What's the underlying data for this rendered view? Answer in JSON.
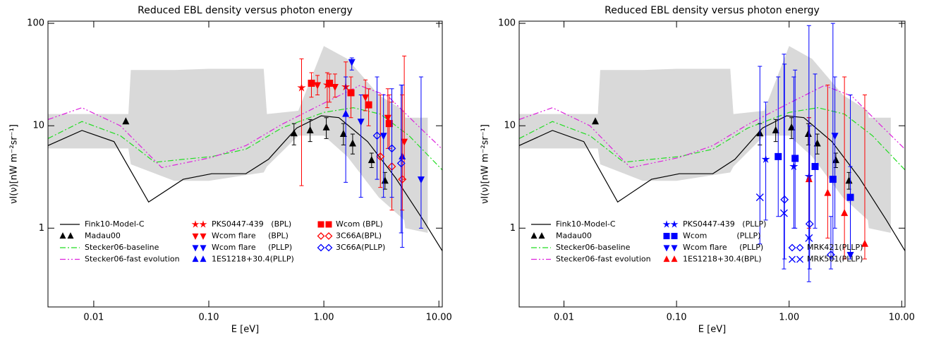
{
  "chart_data": [
    {
      "type": "line",
      "title": "Reduced EBL density versus photon energy",
      "x_label": "E [eV]",
      "y_label": "νI(ν)[nW m⁻²sr⁻¹]",
      "xscale": "log",
      "yscale": "log",
      "xlim": [
        0.004,
        10.7
      ],
      "ylim": [
        0.17,
        105
      ],
      "xticks": [
        0.01,
        {
          "value": 0.1,
          "label": "0.10"
        },
        {
          "value": 1,
          "label": "1.00"
        },
        {
          "value": 10,
          "label": "10.00"
        }
      ],
      "yticks": [
        1,
        10,
        100
      ],
      "band": {
        "color": "#d9d9d9",
        "x": [
          0.004,
          0.009,
          0.02,
          0.021,
          0.05,
          0.1,
          0.3,
          0.32,
          0.6,
          1.0,
          1.6,
          3,
          5,
          5.1,
          8
        ],
        "high": [
          13,
          13,
          13,
          35,
          35,
          36,
          36,
          13,
          14,
          60,
          45,
          20,
          14,
          12,
          12
        ],
        "low": [
          6,
          6,
          6,
          4.2,
          2.9,
          2.9,
          3.5,
          4,
          8,
          8,
          5,
          2,
          1.2,
          1,
          0.9
        ]
      },
      "series": [
        {
          "name": "Fink10-Model-C",
          "color": "#000000",
          "dash": "solid",
          "x": [
            0.004,
            0.0079,
            0.015,
            0.03,
            0.06,
            0.106,
            0.21,
            0.33,
            0.58,
            0.95,
            1.35,
            2.4,
            4.2,
            7.3,
            10.7
          ],
          "values": [
            6.4,
            9,
            7,
            1.8,
            3,
            3.4,
            3.4,
            4.7,
            9.5,
            12.5,
            12,
            7,
            3.1,
            1.2,
            0.6
          ]
        },
        {
          "name": "Madau00",
          "color": "#000000",
          "marker": "triangle-up",
          "x": [
            0.019,
            0.55,
            0.76,
            1.05,
            1.48,
            1.78,
            2.6,
            3.4
          ],
          "values": [
            11,
            8.4,
            9,
            9.6,
            8.3,
            6.7,
            4.6,
            2.9
          ],
          "low": [
            null,
            6.5,
            7,
            7.5,
            6.5,
            5.3,
            3.9,
            2.4
          ],
          "high": [
            null,
            10.5,
            11.5,
            12,
            10.5,
            8.3,
            5.4,
            3.5
          ]
        },
        {
          "name": "Stecker06-baseline",
          "color": "#22dd22",
          "dash": "dashdot",
          "x": [
            0.004,
            0.0079,
            0.017,
            0.034,
            0.06,
            0.106,
            0.21,
            0.43,
            1.0,
            1.8,
            3.1,
            5.5,
            10.7
          ],
          "values": [
            7.5,
            11,
            8,
            4.4,
            4.7,
            5,
            5.9,
            9.5,
            13.5,
            15,
            13,
            8,
            3.7
          ]
        },
        {
          "name": "Stecker06-fast evolution",
          "color": "#dd22dd",
          "dash": "dashdotdot",
          "x": [
            0.004,
            0.0079,
            0.017,
            0.039,
            0.106,
            0.21,
            0.43,
            1.0,
            2.05,
            3.6,
            6.4,
            10.7
          ],
          "values": [
            11.5,
            15,
            10,
            3.9,
            4.9,
            6.4,
            10.3,
            16.6,
            24.7,
            19.5,
            10.3,
            5.9
          ]
        },
        {
          "name": "PKS0447-439   (BPL)",
          "color": "#ff0000",
          "marker": "star",
          "x": [
            0.64,
            1.07,
            1.55
          ],
          "values": [
            23.5,
            25,
            24
          ],
          "low": [
            2.6,
            15,
            13
          ],
          "high": [
            45,
            33,
            42
          ]
        },
        {
          "name": "Wcom flare     (BPL)",
          "color": "#ff0000",
          "marker": "triangle-down",
          "x": [
            0.88,
            1.25,
            2.3,
            3.6,
            5
          ],
          "values": [
            25,
            24,
            19,
            12,
            7
          ],
          "low": [
            20,
            19,
            14,
            6,
            3
          ],
          "high": [
            31,
            32,
            28,
            23,
            48
          ]
        },
        {
          "name": "Wcom flare     (PLLP)",
          "color": "#0000ff",
          "marker": "triangle-down",
          "x": [
            1.75,
            2.1,
            3.3,
            7
          ],
          "values": [
            42,
            11,
            8,
            3
          ],
          "low": [
            35,
            2,
            2,
            1
          ],
          "high": [
            46,
            20,
            20,
            30
          ]
        },
        {
          "name": "1ES1218+30.4(PLLP)",
          "color": "#0000ff",
          "marker": "triangle-up",
          "x": [
            1.55,
            4.8
          ],
          "values": [
            13,
            5
          ],
          "low": [
            2.8,
            0.65
          ],
          "high": [
            30,
            25
          ]
        },
        {
          "name": "Wcom (BPL)",
          "color": "#ff0000",
          "marker": "square",
          "x": [
            0.78,
            1.12,
            1.72,
            2.45,
            3.7
          ],
          "values": [
            26,
            26,
            21,
            16,
            10.5
          ],
          "low": [
            19,
            17,
            12,
            10,
            6
          ],
          "high": [
            33,
            32,
            30,
            23,
            20
          ]
        },
        {
          "name": "3C66A(BPL)",
          "color": "#ff0000",
          "marker": "diamond-open",
          "x": [
            3.1,
            3.9,
            4.8
          ],
          "values": [
            5,
            4,
            3
          ],
          "low": [
            2.5,
            1.5,
            1.5
          ],
          "high": [
            20,
            17,
            20
          ]
        },
        {
          "name": "3C66A(PLLP)",
          "color": "#0000ff",
          "marker": "diamond-open",
          "x": [
            2.9,
            3.9,
            4.7
          ],
          "values": [
            8,
            6,
            4.3
          ],
          "low": [
            3,
            2,
            0.9
          ],
          "high": [
            30,
            23,
            25
          ]
        }
      ]
    },
    {
      "type": "line",
      "title": "Reduced EBL density versus photon energy",
      "x_label": "E [eV]",
      "y_label": "νI(ν)[nW m⁻²sr⁻¹]",
      "xscale": "log",
      "yscale": "log",
      "xlim": [
        0.004,
        10.7
      ],
      "ylim": [
        0.17,
        105
      ],
      "xticks": [
        0.01,
        {
          "value": 0.1,
          "label": "0.10"
        },
        {
          "value": 1,
          "label": "1.00"
        },
        {
          "value": 10,
          "label": "10.00"
        }
      ],
      "yticks": [
        1,
        10,
        100
      ],
      "band": {
        "color": "#d9d9d9",
        "x": [
          0.004,
          0.009,
          0.02,
          0.021,
          0.05,
          0.1,
          0.3,
          0.32,
          0.6,
          1.0,
          1.6,
          3,
          5,
          5.1,
          8
        ],
        "high": [
          13,
          13,
          13,
          35,
          35,
          36,
          36,
          13,
          14,
          60,
          45,
          20,
          14,
          12,
          12
        ],
        "low": [
          6,
          6,
          6,
          4.2,
          2.9,
          2.9,
          3.5,
          4,
          8,
          8,
          5,
          2,
          1.2,
          1,
          0.9
        ]
      },
      "series": [
        {
          "name": "Fink10-Model-C",
          "color": "#000000",
          "dash": "solid",
          "x": [
            0.004,
            0.0079,
            0.015,
            0.03,
            0.06,
            0.106,
            0.21,
            0.33,
            0.58,
            0.95,
            1.35,
            2.4,
            4.2,
            7.3,
            10.7
          ],
          "values": [
            6.4,
            9,
            7,
            1.8,
            3,
            3.4,
            3.4,
            4.7,
            9.5,
            12.5,
            12,
            7,
            3.1,
            1.2,
            0.6
          ]
        },
        {
          "name": "Madau00",
          "color": "#000000",
          "marker": "triangle-up",
          "x": [
            0.019,
            0.55,
            0.76,
            1.05,
            1.48,
            1.78,
            2.6,
            3.4
          ],
          "values": [
            11,
            8.4,
            9,
            9.6,
            8.3,
            6.7,
            4.6,
            2.9
          ],
          "low": [
            null,
            6.5,
            7,
            7.5,
            6.5,
            5.3,
            3.9,
            2.4
          ],
          "high": [
            null,
            10.5,
            11.5,
            12,
            10.5,
            8.3,
            5.4,
            3.5
          ]
        },
        {
          "name": "Stecker06-baseline",
          "color": "#22dd22",
          "dash": "dashdot",
          "x": [
            0.004,
            0.0079,
            0.017,
            0.034,
            0.06,
            0.106,
            0.21,
            0.43,
            1.0,
            1.8,
            3.1,
            5.5,
            10.7
          ],
          "values": [
            7.5,
            11,
            8,
            4.4,
            4.7,
            5,
            5.9,
            9.5,
            13.5,
            15,
            13,
            8,
            3.7
          ]
        },
        {
          "name": "Stecker06-fast evolution",
          "color": "#dd22dd",
          "dash": "dashdotdot",
          "x": [
            0.004,
            0.0079,
            0.017,
            0.039,
            0.106,
            0.21,
            0.43,
            1.0,
            2.05,
            3.6,
            6.4,
            10.7
          ],
          "values": [
            11.5,
            15,
            10,
            3.9,
            4.9,
            6.4,
            10.3,
            16.6,
            24.7,
            19.5,
            10.3,
            5.9
          ]
        },
        {
          "name": "PKS0447-439   (PLLP)",
          "color": "#0000ff",
          "marker": "star",
          "x": [
            0.62,
            1.1,
            1.5
          ],
          "values": [
            4.7,
            4,
            3.2
          ],
          "low": [
            1.2,
            1,
            0.8
          ],
          "high": [
            17,
            30,
            12
          ]
        },
        {
          "name": "Wcom            (PLLP)",
          "color": "#0000ff",
          "marker": "square",
          "x": [
            0.8,
            1.13,
            1.7,
            2.45,
            3.5
          ],
          "values": [
            5,
            4.8,
            4,
            3,
            2
          ],
          "low": [
            1.3,
            1,
            1,
            0.5,
            0.5
          ],
          "high": [
            30,
            35,
            32,
            100,
            20
          ]
        },
        {
          "name": "Wcom flare     (PLLP)",
          "color": "#0000ff",
          "marker": "triangle-down",
          "x": [
            2.55,
            3.5
          ],
          "values": [
            8,
            0.55
          ],
          "low": [
            1,
            0.55
          ],
          "high": [
            30,
            4
          ]
        },
        {
          "name": "1ES1218+30.4(BPL)",
          "color": "#ff0000",
          "marker": "triangle-up",
          "x": [
            1.5,
            2.2,
            3.1,
            4.7
          ],
          "values": [
            3,
            2.2,
            1.4,
            0.7
          ],
          "low": [
            1,
            0.8,
            0.5,
            0.5
          ],
          "high": [
            12,
            25,
            30,
            20
          ]
        },
        {
          "name": "MRK421(PLLP)",
          "color": "#0000ff",
          "marker": "diamond-open",
          "x": [
            0.91,
            1.52,
            2.35
          ],
          "values": [
            1.9,
            1.1,
            0.55
          ],
          "low": [
            0.5,
            0.4,
            0.4
          ],
          "high": [
            40,
            10,
            1.3
          ]
        },
        {
          "name": "MRK501(PLLP)",
          "color": "#0000ff",
          "marker": "cross",
          "x": [
            0.55,
            0.9,
            1.5
          ],
          "values": [
            2,
            1.4,
            0.8
          ],
          "low": [
            0.7,
            0.4,
            0.3
          ],
          "high": [
            38,
            50,
            95
          ]
        }
      ]
    }
  ]
}
